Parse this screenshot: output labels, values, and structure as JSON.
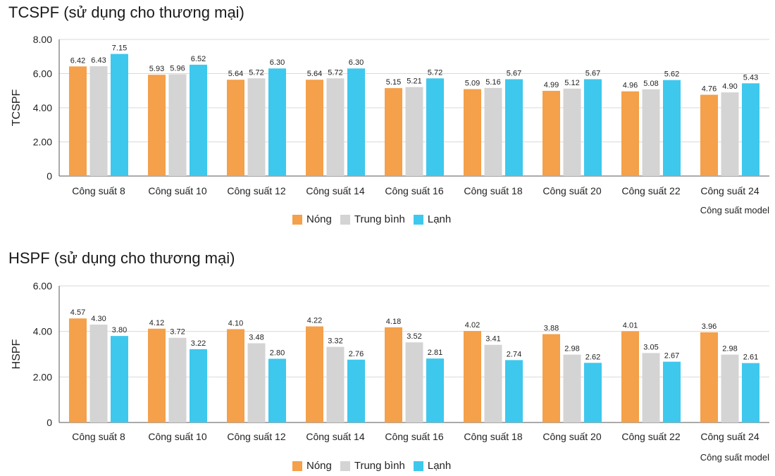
{
  "chart_data": [
    {
      "type": "bar",
      "title": "TCSPF (sử dụng cho thương mại)",
      "ylabel": "TCSPF",
      "xlabel": "Công suất model",
      "ylim": [
        0,
        8
      ],
      "yticks": [
        "0",
        "2.00",
        "4.00",
        "6.00",
        "8.00"
      ],
      "categories": [
        "Công suất 8",
        "Công suất 10",
        "Công suất 12",
        "Công suất 14",
        "Công suất 16",
        "Công suất 18",
        "Công suất 20",
        "Công suất 22",
        "Công suất 24"
      ],
      "series": [
        {
          "name": "Nóng",
          "color": "#F5A04A",
          "values": [
            6.42,
            5.93,
            5.64,
            5.64,
            5.15,
            5.09,
            4.99,
            4.96,
            4.76
          ]
        },
        {
          "name": "Trung bình",
          "color": "#D4D4D4",
          "values": [
            6.43,
            5.96,
            5.72,
            5.72,
            5.21,
            5.16,
            5.12,
            5.08,
            4.9
          ]
        },
        {
          "name": "Lạnh",
          "color": "#3EC8EE",
          "values": [
            7.15,
            6.52,
            6.3,
            6.3,
            5.72,
            5.67,
            5.67,
            5.62,
            5.43
          ]
        }
      ],
      "grid": true,
      "legend_position": "bottom"
    },
    {
      "type": "bar",
      "title": "HSPF (sử dụng cho thương mại)",
      "ylabel": "HSPF",
      "xlabel": "Công suất model",
      "ylim": [
        0,
        6
      ],
      "yticks": [
        "0",
        "2.00",
        "4.00",
        "6.00"
      ],
      "categories": [
        "Công suất 8",
        "Công suất 10",
        "Công suất 12",
        "Công suất 14",
        "Công suất 16",
        "Công suất 18",
        "Công suất 20",
        "Công suất 22",
        "Công suất 24"
      ],
      "series": [
        {
          "name": "Nóng",
          "color": "#F5A04A",
          "values": [
            4.57,
            4.12,
            4.1,
            4.22,
            4.18,
            4.02,
            3.88,
            4.01,
            3.96
          ]
        },
        {
          "name": "Trung bình",
          "color": "#D4D4D4",
          "values": [
            4.3,
            3.72,
            3.48,
            3.32,
            3.52,
            3.41,
            2.98,
            3.05,
            2.98
          ]
        },
        {
          "name": "Lạnh",
          "color": "#3EC8EE",
          "values": [
            3.8,
            3.22,
            2.8,
            2.76,
            2.81,
            2.74,
            2.62,
            2.67,
            2.61
          ]
        }
      ],
      "grid": true,
      "legend_position": "bottom"
    }
  ]
}
